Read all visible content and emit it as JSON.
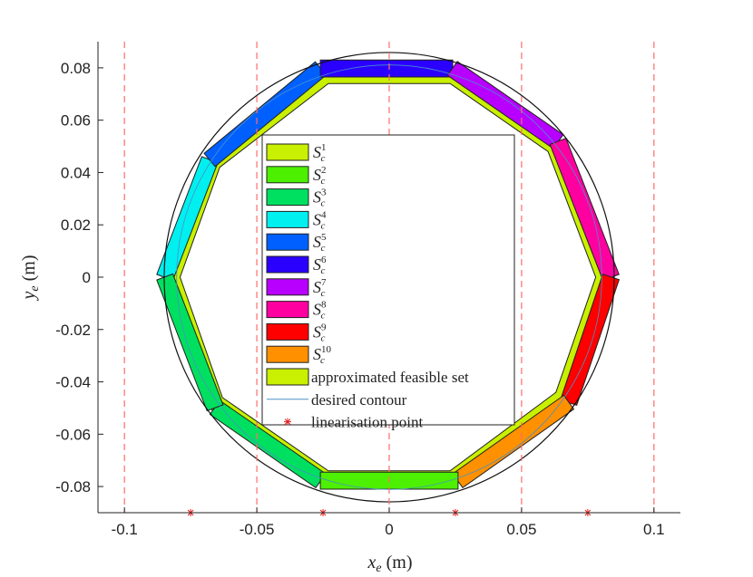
{
  "chart_data": {
    "type": "area",
    "xlabel_main": "x",
    "xlabel_sub": "e",
    "xlabel_unit": "(m)",
    "ylabel_main": "y",
    "ylabel_sub": "e",
    "ylabel_unit": "(m)",
    "xlim": [
      -0.11,
      0.11
    ],
    "ylim": [
      -0.09,
      0.09
    ],
    "xticks": [
      -0.1,
      -0.05,
      0,
      0.05,
      0.1
    ],
    "xtick_labels": [
      "-0.1",
      "-0.05",
      "0",
      "0.05",
      "0.1"
    ],
    "yticks": [
      -0.08,
      -0.06,
      -0.04,
      -0.02,
      0,
      0.02,
      0.04,
      0.06,
      0.08
    ],
    "ytick_labels": [
      "-0.08",
      "-0.06",
      "-0.04",
      "-0.02",
      "0",
      "0.02",
      "0.04",
      "0.06",
      "0.08"
    ],
    "grid": false,
    "legend_position": "center",
    "vertical_dashed_lines_x": [
      -0.1,
      -0.05,
      0,
      0.05,
      0.1
    ],
    "dashed_line_color": "#ff6b6b",
    "linearisation_points": {
      "x": [
        -0.075,
        -0.025,
        0.025,
        0.075
      ],
      "y": [
        -0.09,
        -0.09,
        -0.09,
        -0.09
      ],
      "color": "#e02020"
    },
    "outer_contour_radius": 0.085,
    "inner_contour_radius": 0.085,
    "approx_feasible_set": {
      "color": "#c8f000",
      "outer_vertices": [
        [
          0.084,
          0.0
        ],
        [
          0.064,
          0.052
        ],
        [
          0.026,
          0.078
        ],
        [
          -0.026,
          0.078
        ],
        [
          -0.068,
          0.045
        ],
        [
          -0.085,
          0.0
        ],
        [
          -0.068,
          -0.05
        ],
        [
          -0.026,
          -0.078
        ],
        [
          0.026,
          -0.078
        ],
        [
          0.068,
          -0.048
        ]
      ],
      "inner_vertices": [
        [
          0.078,
          0.0
        ],
        [
          0.06,
          0.048
        ],
        [
          0.023,
          0.074
        ],
        [
          -0.023,
          0.074
        ],
        [
          -0.064,
          0.042
        ],
        [
          -0.079,
          0.0
        ],
        [
          -0.063,
          -0.046
        ],
        [
          -0.023,
          -0.074
        ],
        [
          0.023,
          -0.074
        ],
        [
          0.063,
          -0.044
        ]
      ]
    },
    "subsets": [
      {
        "name": "S_c^1",
        "label_main": "S",
        "label_sub": "c",
        "label_sup": "1",
        "color": "#c8f000"
      },
      {
        "name": "S_c^2",
        "label_main": "S",
        "label_sub": "c",
        "label_sup": "2",
        "color": "#4cf000"
      },
      {
        "name": "S_c^3",
        "label_main": "S",
        "label_sub": "c",
        "label_sup": "3",
        "color": "#00e060",
        "segment": [
          [
            -0.066,
            -0.05
          ],
          [
            -0.026,
            -0.078
          ]
        ]
      },
      {
        "name": "S_c^4",
        "label_main": "S",
        "label_sub": "c",
        "label_sup": "4",
        "color": "#00f0f0",
        "segment": [
          [
            -0.085,
            0.0
          ],
          [
            -0.068,
            0.045
          ]
        ]
      },
      {
        "name": "S_c^5",
        "label_main": "S",
        "label_sub": "c",
        "label_sup": "5",
        "color": "#0060ff",
        "segment": [
          [
            -0.068,
            0.045
          ],
          [
            -0.026,
            0.08
          ]
        ]
      },
      {
        "name": "S_c^6",
        "label_main": "S",
        "label_sub": "c",
        "label_sup": "6",
        "color": "#2a00ff",
        "segment": [
          [
            -0.026,
            0.08
          ],
          [
            0.024,
            0.08
          ]
        ]
      },
      {
        "name": "S_c^7",
        "label_main": "S",
        "label_sub": "c",
        "label_sup": "7",
        "color": "#b800ff",
        "segment": [
          [
            0.024,
            0.08
          ],
          [
            0.064,
            0.052
          ]
        ]
      },
      {
        "name": "S_c^8",
        "label_main": "S",
        "label_sub": "c",
        "label_sup": "8",
        "color": "#ff00a0",
        "segment": [
          [
            0.064,
            0.052
          ],
          [
            0.084,
            0.0
          ]
        ]
      },
      {
        "name": "S_c^9",
        "label_main": "S",
        "label_sub": "c",
        "label_sup": "9",
        "color": "#ff0000",
        "segment": [
          [
            0.084,
            0.0
          ],
          [
            0.068,
            -0.048
          ]
        ]
      },
      {
        "name": "S_c^10",
        "label_main": "S",
        "label_sub": "c",
        "label_sup": "10",
        "color": "#ff9000",
        "segment": [
          [
            0.068,
            -0.048
          ],
          [
            0.026,
            -0.078
          ]
        ]
      }
    ],
    "extra_segments": [
      {
        "series": "S_c^2",
        "color": "#4cf000",
        "segment": [
          [
            -0.026,
            -0.078
          ],
          [
            0.026,
            -0.078
          ]
        ]
      },
      {
        "series": "S_c^3",
        "color": "#00e060",
        "segment": [
          [
            -0.085,
            0.0
          ],
          [
            -0.066,
            -0.05
          ]
        ]
      }
    ],
    "legend_entries": [
      {
        "label": "approximated feasible set",
        "kind": "patch",
        "color": "#c8f000"
      },
      {
        "label": "desired contour",
        "kind": "line",
        "color": "#4a90c8"
      },
      {
        "label": "linearisation point",
        "kind": "marker",
        "color": "#e02020"
      }
    ]
  }
}
